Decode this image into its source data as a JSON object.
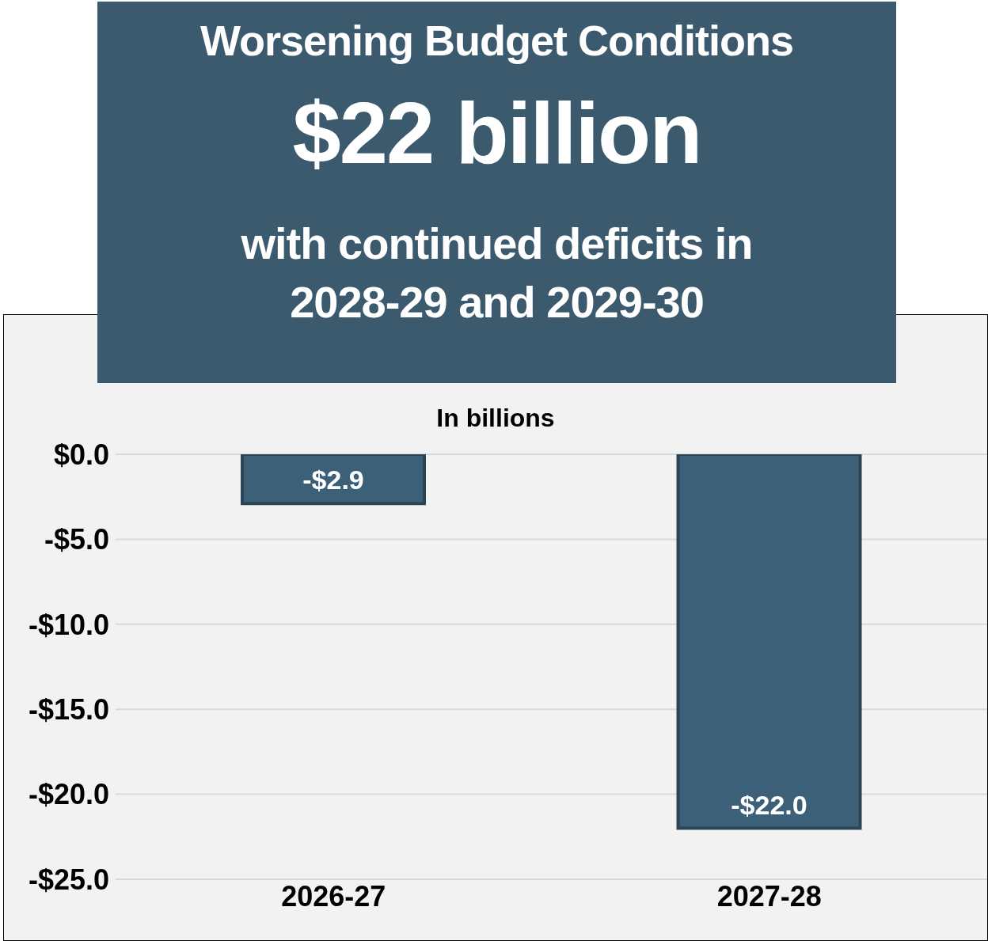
{
  "chart_data": {
    "type": "bar",
    "title": "Worsening Budget Conditions",
    "annotations": [
      "$22 billion",
      "with continued deficits in 2028-29 and 2029-30"
    ],
    "ylabel": "In billions",
    "categories": [
      "2026-27",
      "2027-28"
    ],
    "values": [
      -2.9,
      -22.0
    ],
    "value_labels": [
      "-$2.9",
      "-$22.0"
    ],
    "color": "#3d6079",
    "ylim": [
      -25,
      0
    ],
    "yticks": [
      {
        "value": 0,
        "label": "$0.0"
      },
      {
        "value": -5,
        "label": "-$5.0"
      },
      {
        "value": -10,
        "label": "-$10.0"
      },
      {
        "value": -15,
        "label": "-$15.0"
      },
      {
        "value": -20,
        "label": "-$20.0"
      },
      {
        "value": -25,
        "label": "-$25.0"
      }
    ],
    "grid": "y"
  }
}
